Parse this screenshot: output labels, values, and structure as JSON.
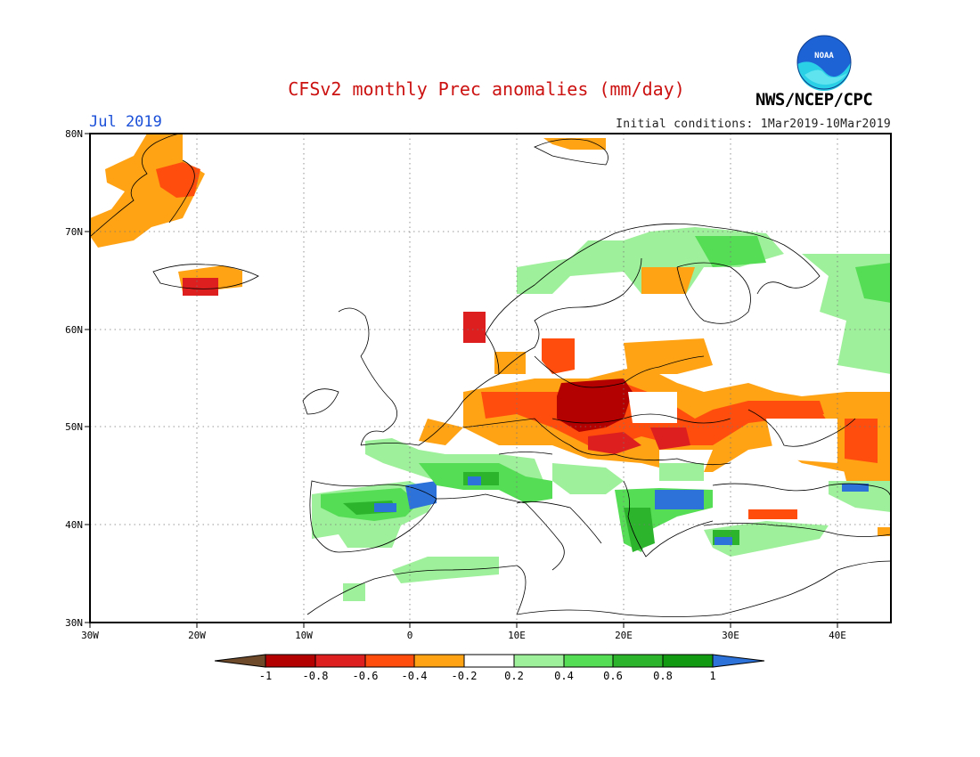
{
  "header": {
    "title": "CFSv2 monthly Prec anomalies (mm/day)",
    "month": "Jul 2019",
    "initial_conditions": "Initial conditions: 1Mar2019-10Mar2019",
    "agency": "NWS/NCEP/CPC",
    "logo_text": "NOAA"
  },
  "map": {
    "lon_range": [
      -30,
      45
    ],
    "lat_range": [
      30,
      80
    ],
    "lat_ticks": [
      "80N",
      "70N",
      "60N",
      "50N",
      "40N",
      "30N"
    ],
    "lon_ticks": [
      "30W",
      "20W",
      "10W",
      "0",
      "10E",
      "20E",
      "30E",
      "40E"
    ],
    "grid": true
  },
  "colorbar": {
    "labels": [
      "-1",
      "-0.8",
      "-0.6",
      "-0.4",
      "-0.2",
      "0.2",
      "0.4",
      "0.6",
      "0.8",
      "1"
    ],
    "colors": {
      "below_min": "#6e4a2b",
      "bins": [
        "#b30000",
        "#dd1f1f",
        "#ff4d0d",
        "#ffa214",
        "#ffffff",
        "#9ef09a",
        "#55dd55",
        "#2db42d",
        "#139a13"
      ],
      "above_max": "#2c72d9"
    }
  },
  "anomaly_regions": [
    {
      "name": "greenland-east-coast",
      "value": -0.4
    },
    {
      "name": "greenland-northeast",
      "value": -0.6
    },
    {
      "name": "iceland",
      "value": -0.4
    },
    {
      "name": "iceland-core",
      "value": -0.8
    },
    {
      "name": "svalbard",
      "value": -0.4
    },
    {
      "name": "central-europe-germany-poland",
      "value": -0.8
    },
    {
      "name": "central-europe-ring",
      "value": -0.6
    },
    {
      "name": "ukraine-russia",
      "value": -0.4
    },
    {
      "name": "southern-sweden",
      "value": -0.4
    },
    {
      "name": "iberia",
      "value": 0.6
    },
    {
      "name": "iberia-core",
      "value": 0.8
    },
    {
      "name": "pyrenees",
      "value": 1.0
    },
    {
      "name": "alps",
      "value": 0.6
    },
    {
      "name": "balkans",
      "value": 0.6
    },
    {
      "name": "balkans-peaks",
      "value": 1.0
    },
    {
      "name": "north-africa",
      "value": 0.2
    },
    {
      "name": "scandinavia-north",
      "value": 0.2
    },
    {
      "name": "russia-northwest",
      "value": 0.2
    },
    {
      "name": "anatolia",
      "value": 0.2
    },
    {
      "name": "turkey-north",
      "value": -0.6
    },
    {
      "name": "caucasus",
      "value": 1.0
    }
  ]
}
